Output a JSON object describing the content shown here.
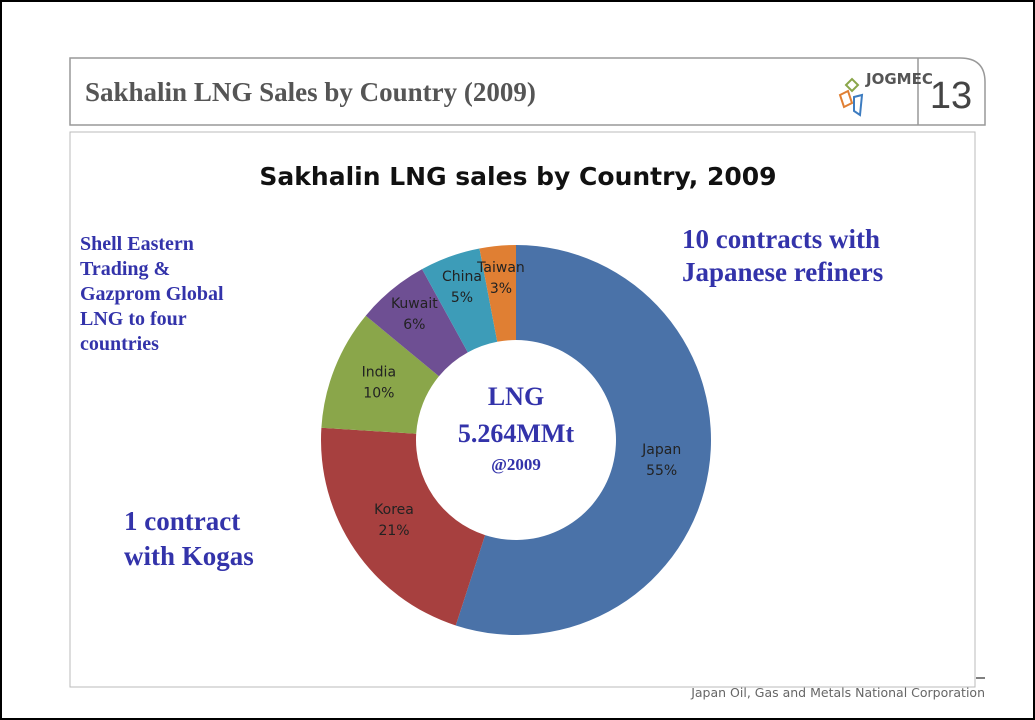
{
  "header": {
    "title": "Sakhalin LNG Sales by Country (2009)",
    "logo": "JOGMEC",
    "page_number": "13"
  },
  "footer": "Japan Oil, Gas and Metals National Corporation",
  "chart_data": {
    "type": "pie",
    "donut": true,
    "title": "Sakhalin LNG sales by Country, 2009",
    "categories": [
      "Japan",
      "Korea",
      "India",
      "Kuwait",
      "China",
      "Taiwan"
    ],
    "values": [
      55,
      21,
      10,
      6,
      5,
      3
    ],
    "value_labels": [
      "55%",
      "21%",
      "10%",
      "6%",
      "5%",
      "3%"
    ],
    "colors": [
      "#4a72a8",
      "#a7403f",
      "#8aa64a",
      "#6e4f93",
      "#3d9cb8",
      "#e07f33"
    ],
    "center_label": [
      "LNG",
      "5.264MMt",
      "@2009"
    ],
    "annotations": [
      {
        "lines": [
          "Shell Eastern",
          "Trading &",
          "Gazprom Global",
          "LNG to four",
          "countries"
        ]
      },
      {
        "lines": [
          "10 contracts with",
          "Japanese refiners"
        ]
      },
      {
        "lines": [
          "1 contract",
          "with Kogas"
        ]
      }
    ]
  }
}
